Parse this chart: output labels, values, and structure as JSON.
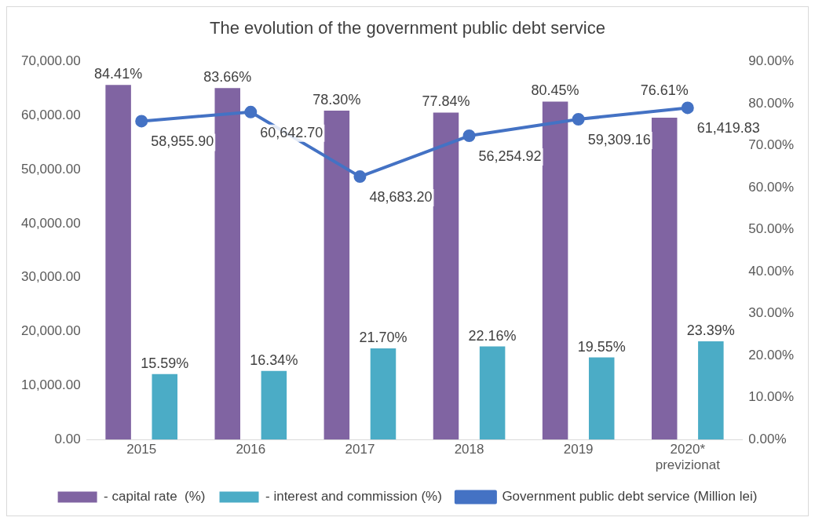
{
  "chart_data": {
    "type": "bar",
    "title": "The evolution of the government public debt service",
    "categories": [
      "2015",
      "2016",
      "2017",
      "2018",
      "2019",
      "2020* previzionat"
    ],
    "series": [
      {
        "name": "- capital rate  (%)",
        "axis": "y2",
        "color": "#8064a2",
        "values": [
          84.41,
          83.66,
          78.3,
          77.84,
          80.45,
          76.61
        ],
        "value_labels": [
          "84.41%",
          "83.66%",
          "78.30%",
          "77.84%",
          "80.45%",
          "76.61%"
        ]
      },
      {
        "name": "- interest and commission (%)",
        "axis": "y2",
        "color": "#4bacc6",
        "values": [
          15.59,
          16.34,
          21.7,
          22.16,
          19.55,
          23.39
        ],
        "value_labels": [
          "15.59%",
          "16.34%",
          "21.70%",
          "22.16%",
          "19.55%",
          "23.39%"
        ]
      },
      {
        "name": "Government public debt service (Million lei)",
        "type": "line",
        "axis": "y",
        "color": "#4472c4",
        "values": [
          58955.9,
          60642.7,
          48683.2,
          56254.92,
          59309.16,
          61419.83
        ],
        "value_labels": [
          "58,955.90",
          "60,642.70",
          "48,683.20",
          "56,254.92",
          "59,309.16",
          "61,419.83"
        ]
      }
    ],
    "ylim": [
      0,
      70000
    ],
    "yticks": [
      {
        "value": 0,
        "label": "0.00"
      },
      {
        "value": 10000,
        "label": "10,000.00"
      },
      {
        "value": 20000,
        "label": "20,000.00"
      },
      {
        "value": 30000,
        "label": "30,000.00"
      },
      {
        "value": 40000,
        "label": "40,000.00"
      },
      {
        "value": 50000,
        "label": "50,000.00"
      },
      {
        "value": 60000,
        "label": "60,000.00"
      },
      {
        "value": 70000,
        "label": "70,000.00"
      }
    ],
    "y2lim": [
      0,
      90
    ],
    "y2ticks": [
      {
        "value": 0,
        "label": "0.00%"
      },
      {
        "value": 10,
        "label": "10.00%"
      },
      {
        "value": 20,
        "label": "20.00%"
      },
      {
        "value": 30,
        "label": "30.00%"
      },
      {
        "value": 40,
        "label": "40.00%"
      },
      {
        "value": 50,
        "label": "50.00%"
      },
      {
        "value": 60,
        "label": "60.00%"
      },
      {
        "value": 70,
        "label": "70.00%"
      },
      {
        "value": 80,
        "label": "80.00%"
      },
      {
        "value": 90,
        "label": "90.00%"
      }
    ],
    "grid": false,
    "legend": "bottom",
    "marker": "circle",
    "line_style": "solid"
  }
}
